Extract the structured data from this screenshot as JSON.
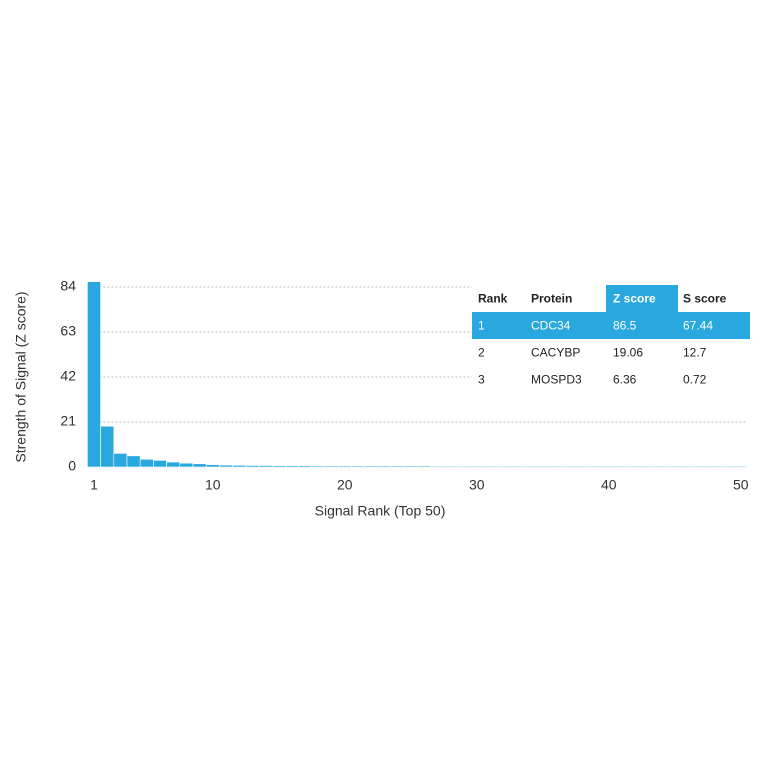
{
  "chart_data": {
    "type": "bar",
    "x_label": "Signal Rank (Top 50)",
    "y_label": "Strength of Signal (Z score)",
    "color": "#29a8e0",
    "xlim": [
      0.5,
      50.5
    ],
    "xticks": [
      1,
      10,
      20,
      30,
      40,
      50
    ],
    "ylim": [
      0,
      84
    ],
    "yticks": [
      0,
      21,
      42,
      63,
      84
    ],
    "grid": true,
    "x": [
      1,
      2,
      3,
      4,
      5,
      6,
      7,
      8,
      9,
      10,
      11,
      12,
      13,
      14,
      15,
      16,
      17,
      18,
      19,
      20,
      21,
      22,
      23,
      24,
      25,
      26,
      27,
      28,
      29,
      30,
      31,
      32,
      33,
      34,
      35,
      36,
      37,
      38,
      39,
      40,
      41,
      42,
      43,
      44,
      45,
      46,
      47,
      48,
      49,
      50
    ],
    "values": [
      86.5,
      19.06,
      6.36,
      5.2,
      3.6,
      3.1,
      2.3,
      1.8,
      1.5,
      1.1,
      0.9,
      0.8,
      0.7,
      0.7,
      0.6,
      0.6,
      0.6,
      0.5,
      0.5,
      0.5,
      0.5,
      0.5,
      0.5,
      0.5,
      0.5,
      0.5,
      0.4,
      0.4,
      0.4,
      0.4,
      0.4,
      0.4,
      0.4,
      0.4,
      0.4,
      0.4,
      0.4,
      0.4,
      0.4,
      0.4,
      0.4,
      0.4,
      0.4,
      0.4,
      0.4,
      0.4,
      0.4,
      0.4,
      0.4,
      0.4
    ],
    "table": {
      "columns": [
        "Rank",
        "Protein",
        "Z score",
        "S score"
      ],
      "highlight_row": 0,
      "highlight_column": 2,
      "rows": [
        [
          "1",
          "CDC34",
          "86.5",
          "67.44"
        ],
        [
          "2",
          "CACYBP",
          "19.06",
          "12.7"
        ],
        [
          "3",
          "MOSPD3",
          "6.36",
          "0.72"
        ]
      ]
    }
  }
}
